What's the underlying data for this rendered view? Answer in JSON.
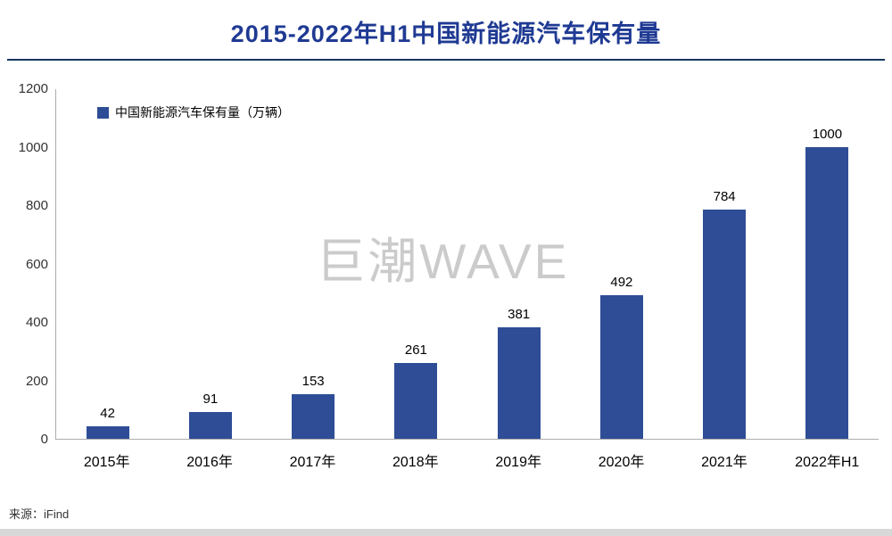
{
  "header": {
    "title": "2015-2022年H1中国新能源汽车保有量"
  },
  "chart_data": {
    "type": "bar",
    "title": "2015-2022年H1中国新能源汽车保有量",
    "categories": [
      "2015年",
      "2016年",
      "2017年",
      "2018年",
      "2019年",
      "2020年",
      "2021年",
      "2022年H1"
    ],
    "values": [
      42,
      91,
      153,
      261,
      381,
      492,
      784,
      1000
    ],
    "legend": "中国新能源汽车保有量（万辆）",
    "legend_position": "top-left",
    "xlabel": "",
    "ylabel": "",
    "ylim": [
      0,
      1200
    ],
    "yticks": [
      0,
      200,
      400,
      600,
      800,
      1000,
      1200
    ],
    "grid": false,
    "bar_color": "#2E4D96",
    "title_color": "#1F3A93"
  },
  "watermark": "巨潮WAVE",
  "footer": {
    "source": "来源：iFind"
  }
}
